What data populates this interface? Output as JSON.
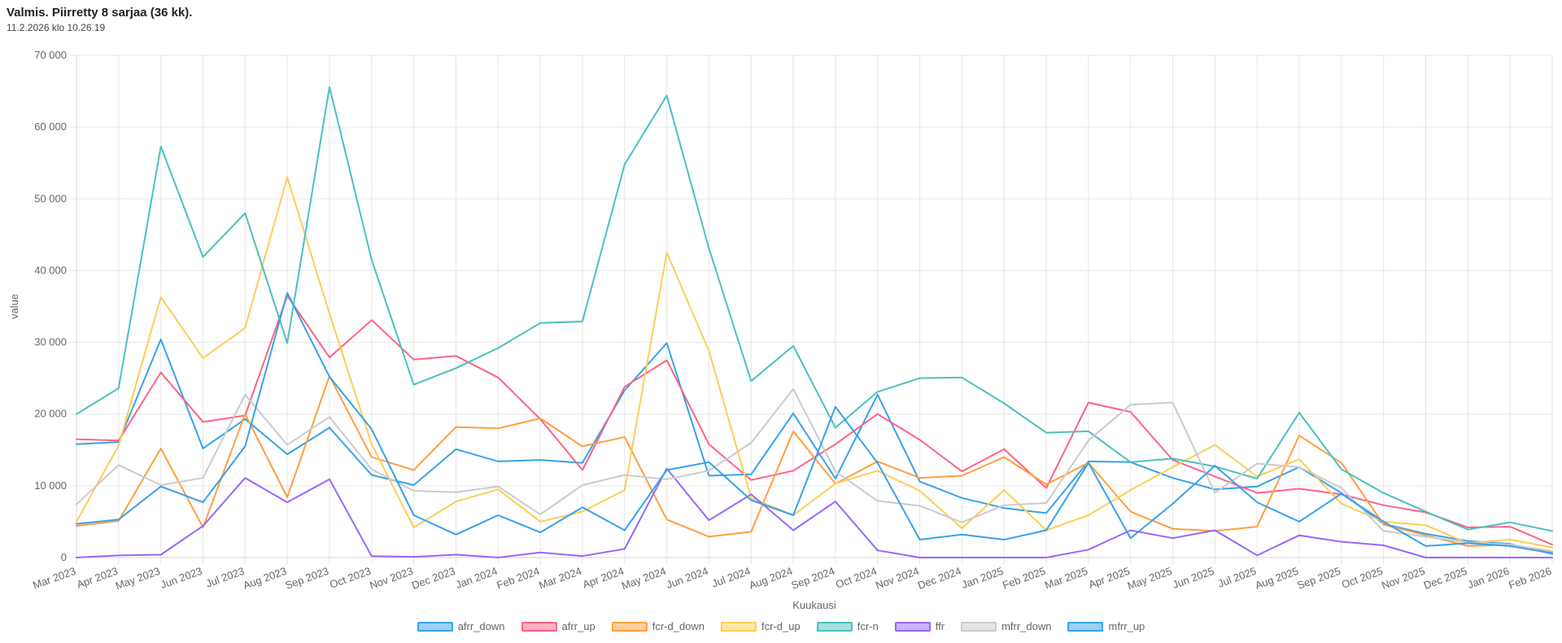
{
  "status": {
    "title": "Valmis. Piirretty 8 sarjaa (36 kk).",
    "timestamp": "11.2.2026 klo 10.26.19"
  },
  "chart_data": {
    "type": "line",
    "title": "",
    "xlabel": "Kuukausi",
    "ylabel": "value",
    "ylim": [
      0,
      70000
    ],
    "yticks": [
      0,
      10000,
      20000,
      30000,
      40000,
      50000,
      60000,
      70000
    ],
    "ytick_labels": [
      "0",
      "10 000",
      "20 000",
      "30 000",
      "40 000",
      "50 000",
      "60 000",
      "70 000"
    ],
    "grid": true,
    "legend_position": "bottom-center",
    "categories": [
      "Mar 2023",
      "Apr 2023",
      "May 2023",
      "Jun 2023",
      "Jul 2023",
      "Aug 2023",
      "Sep 2023",
      "Oct 2023",
      "Nov 2023",
      "Dec 2023",
      "Jan 2024",
      "Feb 2024",
      "Mar 2024",
      "Apr 2024",
      "May 2024",
      "Jun 2024",
      "Jul 2024",
      "Aug 2024",
      "Sep 2024",
      "Oct 2024",
      "Nov 2024",
      "Dec 2024",
      "Jan 2025",
      "Feb 2025",
      "Mar 2025",
      "Apr 2025",
      "May 2025",
      "Jun 2025",
      "Jul 2025",
      "Aug 2025",
      "Sep 2025",
      "Oct 2025",
      "Nov 2025",
      "Dec 2025",
      "Jan 2026",
      "Feb 2026"
    ],
    "series": [
      {
        "name": "afrr_down",
        "color": "#36a2eb",
        "values": [
          15800,
          16100,
          30400,
          15200,
          19300,
          14400,
          18100,
          11500,
          10100,
          15100,
          13400,
          13600,
          13200,
          23300,
          29900,
          11400,
          11600,
          20100,
          11000,
          22700,
          10600,
          8300,
          6900,
          6200,
          13400,
          13300,
          11100,
          9500,
          9900,
          12600,
          9000,
          4700,
          3300,
          2300,
          1900,
          500
        ]
      },
      {
        "name": "afrr_up",
        "color": "#ff6384",
        "values": [
          16500,
          16300,
          25800,
          18900,
          19800,
          36500,
          27900,
          33100,
          27600,
          28100,
          25100,
          19300,
          12200,
          23800,
          27500,
          15800,
          10800,
          12100,
          15800,
          20000,
          16400,
          12000,
          15100,
          9700,
          21600,
          20300,
          13600,
          11300,
          9000,
          9600,
          8800,
          7300,
          6300,
          4200,
          4300,
          1800
        ]
      },
      {
        "name": "fcr-d_down",
        "color": "#ff9f40",
        "values": [
          4400,
          5100,
          15200,
          4200,
          20000,
          8400,
          25300,
          14000,
          12200,
          18200,
          18000,
          19400,
          15500,
          16800,
          5300,
          2900,
          3600,
          17600,
          10300,
          13400,
          11100,
          11400,
          14000,
          10200,
          13200,
          6400,
          4000,
          3700,
          4300,
          17000,
          13200,
          4600,
          3100,
          1600,
          1800,
          700
        ]
      },
      {
        "name": "fcr-d_up",
        "color": "#ffcd56",
        "values": [
          5000,
          15600,
          36300,
          27800,
          32000,
          53000,
          34000,
          15800,
          4200,
          7800,
          9500,
          5000,
          6400,
          9400,
          42500,
          28800,
          8300,
          5900,
          10300,
          12100,
          9300,
          4100,
          9400,
          3800,
          5900,
          9400,
          12600,
          15700,
          11300,
          13700,
          7500,
          5000,
          4500,
          2000,
          2500,
          1400
        ]
      },
      {
        "name": "fcr-n",
        "color": "#4bc0c0",
        "values": [
          20000,
          23600,
          57300,
          41900,
          48000,
          29900,
          65600,
          41500,
          24100,
          26400,
          29200,
          32700,
          32900,
          54800,
          64400,
          43100,
          24600,
          29500,
          18100,
          23100,
          25000,
          25100,
          21500,
          17400,
          17600,
          13300,
          13800,
          12700,
          11000,
          20200,
          12300,
          9000,
          6400,
          3900,
          4900,
          3700
        ]
      },
      {
        "name": "ffr",
        "color": "#9966ff",
        "values": [
          0,
          300,
          400,
          4400,
          11100,
          7700,
          10900,
          200,
          100,
          400,
          0,
          700,
          200,
          1200,
          12400,
          5200,
          8800,
          3800,
          7800,
          1000,
          0,
          0,
          0,
          0,
          1100,
          3800,
          2700,
          3800,
          300,
          3100,
          2200,
          1700,
          0,
          0,
          0,
          0
        ]
      },
      {
        "name": "mfrr_down",
        "color": "#c9cbcf",
        "values": [
          7400,
          12900,
          10100,
          11100,
          22700,
          15700,
          19600,
          12300,
          9300,
          9100,
          9900,
          6000,
          10100,
          11500,
          10900,
          12100,
          16000,
          23500,
          12000,
          7900,
          7200,
          4900,
          7300,
          7600,
          16300,
          21300,
          21600,
          9000,
          13100,
          12600,
          9700,
          3700,
          2900,
          2100,
          1800,
          900
        ]
      },
      {
        "name": "mfrr_up",
        "color": "#36a2eb",
        "values": [
          4700,
          5300,
          9900,
          7700,
          15500,
          36900,
          25200,
          17900,
          5900,
          3200,
          5900,
          3500,
          7000,
          3800,
          12200,
          13300,
          8000,
          5900,
          21000,
          13200,
          2500,
          3200,
          2500,
          3800,
          13200,
          2700,
          7500,
          12800,
          7700,
          5000,
          8900,
          5000,
          1600,
          2000,
          1600,
          600
        ]
      }
    ]
  }
}
